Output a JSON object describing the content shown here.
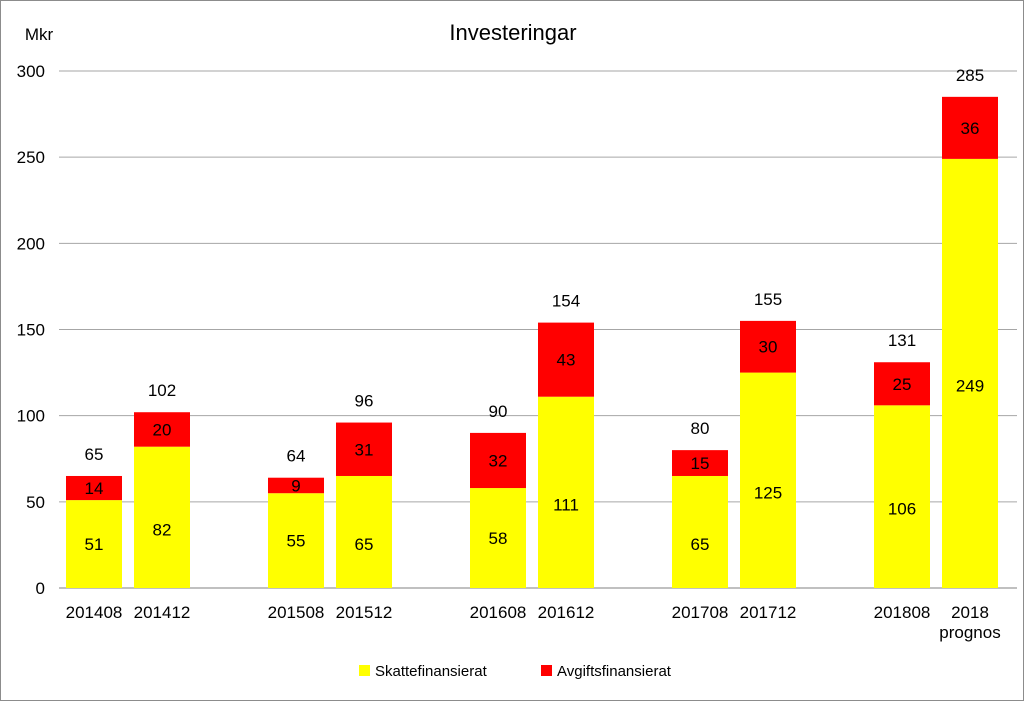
{
  "chart_data": {
    "type": "bar",
    "stacked": true,
    "title": "Investeringar",
    "ylabel": "Mkr",
    "xlabel": "",
    "ylim": [
      0,
      300
    ],
    "yticks": [
      0,
      50,
      100,
      150,
      200,
      250,
      300
    ],
    "grid": true,
    "legend_position": "bottom",
    "categories": [
      "201408",
      "201412",
      "201508",
      "201512",
      "201608",
      "201612",
      "201708",
      "201712",
      "201808",
      "2018 prognos"
    ],
    "category_groups": [
      [
        0,
        1
      ],
      [
        2,
        3
      ],
      [
        4,
        5
      ],
      [
        6,
        7
      ],
      [
        8,
        9
      ]
    ],
    "series": [
      {
        "name": "Skattefinansierat",
        "color": "#ffff00",
        "values": [
          51,
          82,
          55,
          65,
          58,
          111,
          65,
          125,
          106,
          249
        ]
      },
      {
        "name": "Avgiftsfinansierat",
        "color": "#ff0000",
        "values": [
          14,
          20,
          9,
          31,
          32,
          43,
          15,
          30,
          25,
          36
        ]
      }
    ],
    "totals": [
      65,
      102,
      64,
      96,
      90,
      154,
      80,
      155,
      131,
      285
    ]
  }
}
